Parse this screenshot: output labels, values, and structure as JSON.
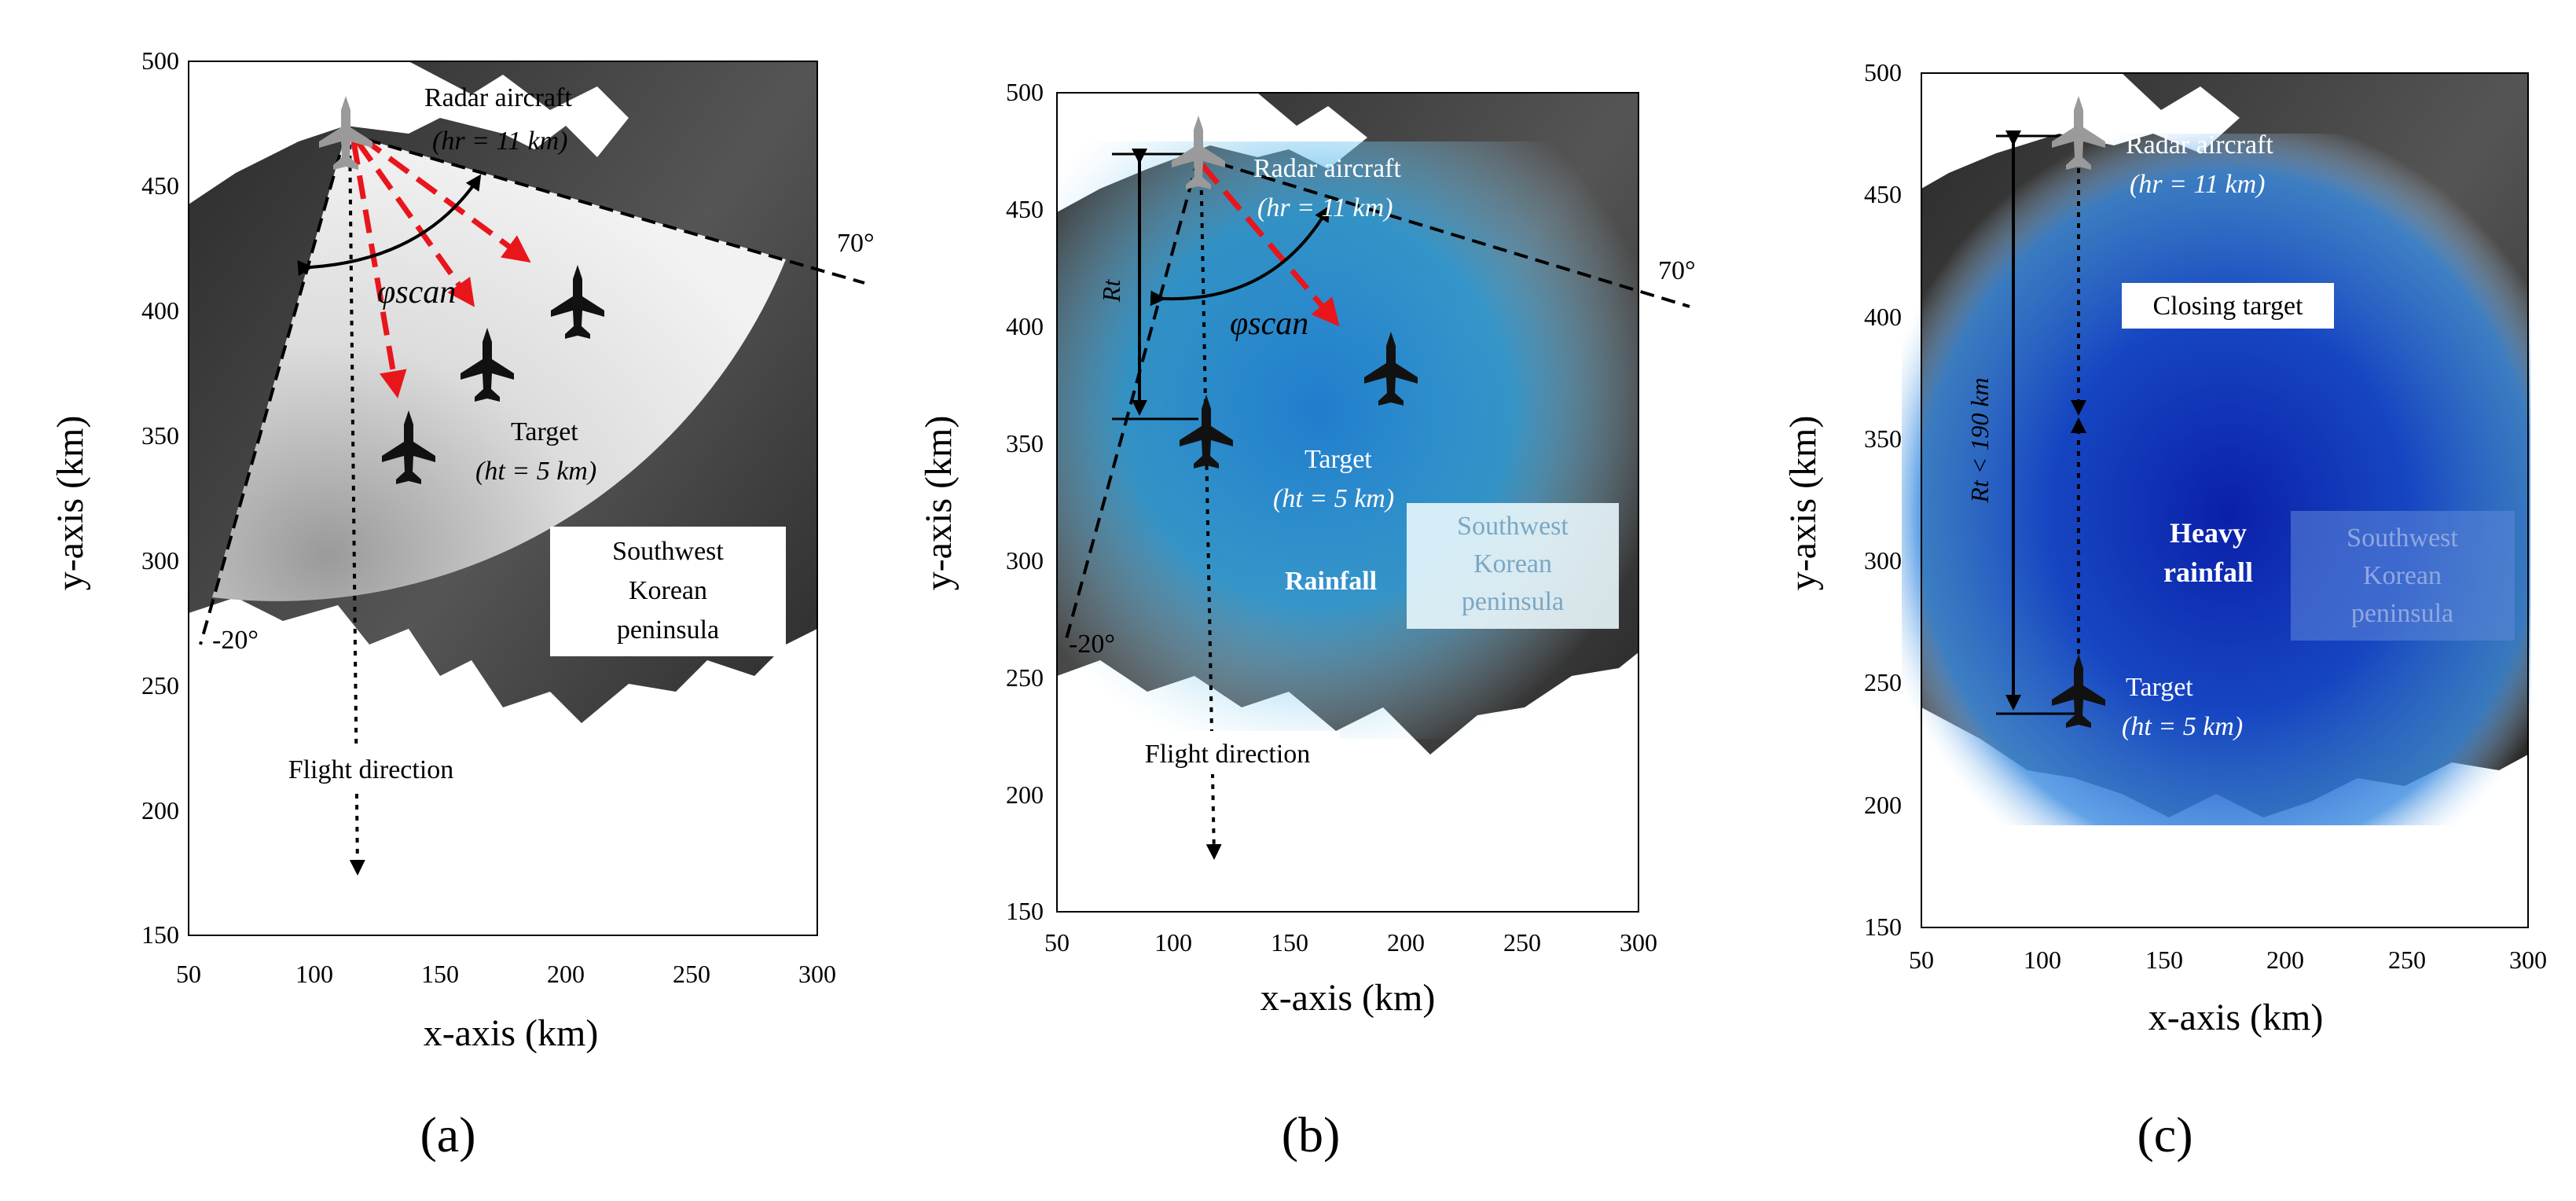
{
  "panels": [
    {
      "id": "a",
      "sublabel": "(a)",
      "x_axis_label": "x-axis (km)",
      "y_axis_label": "y-axis (km)",
      "x_ticks": [
        "50",
        "100",
        "150",
        "200",
        "250",
        "300"
      ],
      "y_ticks": [
        "150",
        "200",
        "250",
        "300",
        "350",
        "400",
        "450",
        "500"
      ],
      "radar_label": "Radar aircraft",
      "radar_alt": "(hr = 11 km)",
      "target_label": "Target",
      "target_alt": "(ht = 5 km)",
      "region_label": [
        "Southwest",
        "Korean",
        "peninsula"
      ],
      "flight_label": "Flight direction",
      "angle_max": "70°",
      "angle_min": "-20°",
      "scan_label": "φscan"
    },
    {
      "id": "b",
      "sublabel": "(b)",
      "x_axis_label": "x-axis (km)",
      "y_axis_label": "y-axis (km)",
      "x_ticks": [
        "50",
        "100",
        "150",
        "200",
        "250",
        "300"
      ],
      "y_ticks": [
        "150",
        "200",
        "250",
        "300",
        "350",
        "400",
        "450",
        "500"
      ],
      "radar_label": "Radar aircraft",
      "radar_alt": "(hr = 11 km)",
      "target_label": "Target",
      "target_alt": "(ht = 5 km)",
      "region_label": [
        "Southwest",
        "Korean",
        "peninsula"
      ],
      "flight_label": "Flight direction",
      "angle_max": "70°",
      "angle_min": "-20°",
      "scan_label": "φscan",
      "range_label": "Rt",
      "rain_label": "Rainfall"
    },
    {
      "id": "c",
      "sublabel": "(c)",
      "x_axis_label": "x-axis (km)",
      "y_axis_label": "y-axis (km)",
      "x_ticks": [
        "50",
        "100",
        "150",
        "200",
        "250",
        "300"
      ],
      "y_ticks": [
        "150",
        "200",
        "250",
        "300",
        "350",
        "400",
        "450",
        "500"
      ],
      "radar_label": "Radar aircraft",
      "radar_alt": "(hr = 11 km)",
      "target_label": "Target",
      "target_alt": "(ht = 5 km)",
      "region_label": [
        "Southwest",
        "Korean",
        "peninsula"
      ],
      "closing_label": "Closing target",
      "range_label": "Rt < 190 km",
      "rain_label": [
        "Heavy",
        "rainfall"
      ]
    }
  ],
  "colors": {
    "arrow_red": "#e8161b",
    "land_dark": "#1a1a1a",
    "rain_light": "#29a8e0",
    "rain_heavy": "#0a2fb0"
  }
}
